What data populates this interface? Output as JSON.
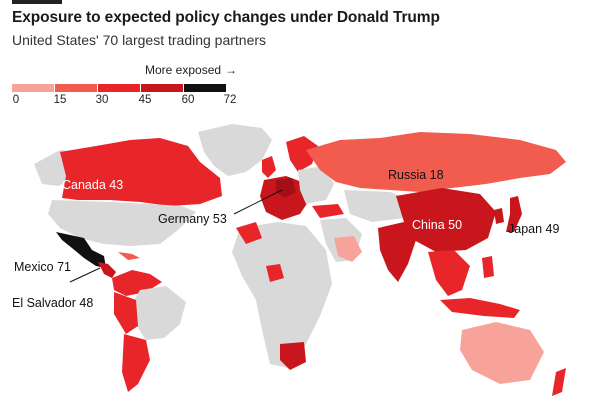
{
  "header": {
    "title": "Exposure to expected policy changes under Donald Trump",
    "subtitle": "United States' 70 largest trading partners"
  },
  "legend": {
    "note": "More exposed",
    "arrow": "→",
    "ticks": [
      "0",
      "15",
      "30",
      "45",
      "60",
      "72"
    ],
    "colors": [
      "#f7a39a",
      "#f25c4f",
      "#e8262a",
      "#c9151c",
      "#a30f14",
      "#111111"
    ]
  },
  "colors": {
    "no_data": "#d9d9d9",
    "background": "#ffffff"
  },
  "labels": {
    "canada": "Canada 43",
    "russia": "Russia 18",
    "germany": "Germany 53",
    "china": "China 50",
    "japan": "Japan 49",
    "mexico": "Mexico 71",
    "el_salvador": "El Salvador 48"
  }
}
